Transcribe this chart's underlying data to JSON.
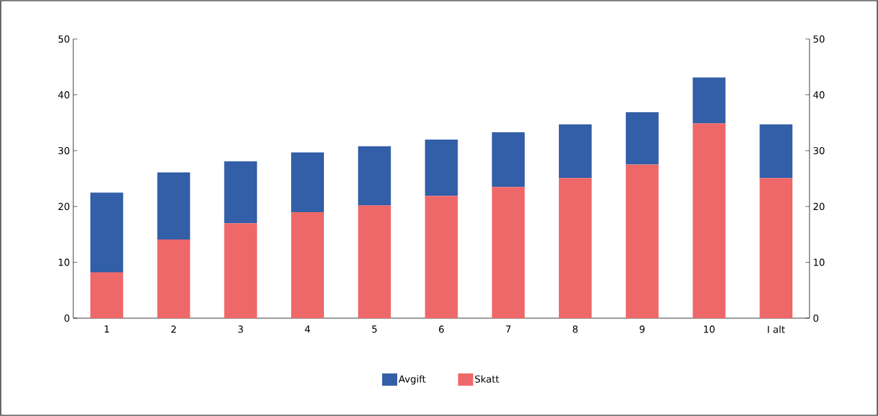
{
  "chart_data": {
    "type": "bar",
    "stacked": true,
    "categories": [
      "1",
      "2",
      "3",
      "4",
      "5",
      "6",
      "7",
      "8",
      "9",
      "10",
      "I alt"
    ],
    "series": [
      {
        "name": "Skatt",
        "color": "#ef6869",
        "values": [
          8.2,
          14.1,
          17.0,
          19.0,
          20.2,
          21.9,
          23.5,
          25.1,
          27.5,
          34.9,
          25.1
        ]
      },
      {
        "name": "Avgift",
        "color": "#335ea8",
        "values": [
          14.3,
          12.0,
          11.1,
          10.7,
          10.6,
          10.1,
          9.8,
          9.6,
          9.4,
          8.2,
          9.6
        ]
      }
    ],
    "ylim": [
      0,
      50
    ],
    "yticks": [
      0,
      10,
      20,
      30,
      40,
      50
    ],
    "y2lim": [
      0,
      50
    ],
    "y2ticks": [
      0,
      10,
      20,
      30,
      40,
      50
    ],
    "grid": false,
    "legend": "bottom"
  }
}
